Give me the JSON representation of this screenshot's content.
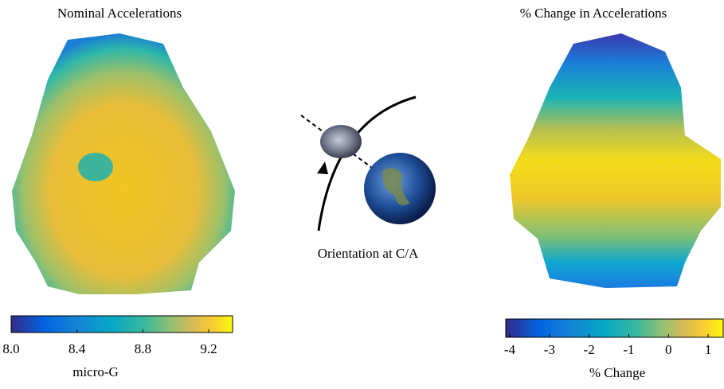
{
  "left_panel": {
    "title": "Nominal Accelerations",
    "colorbar": {
      "lim": [
        8.0,
        9.35
      ],
      "ticks": [
        {
          "value": 8.0,
          "label": "8.0"
        },
        8.4,
        8.8,
        9.2
      ],
      "label": "micro-G"
    }
  },
  "center": {
    "caption": "Orientation at C/A"
  },
  "right_panel": {
    "title": "% Change in Accelerations",
    "colorbar": {
      "lim": [
        -4.1,
        1.4
      ],
      "ticks": [
        -4,
        -3,
        -2,
        -1,
        0,
        1
      ],
      "label": "% Change"
    }
  }
}
